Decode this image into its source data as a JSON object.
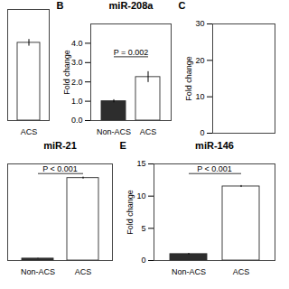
{
  "chart_data": [
    {
      "type": "bar",
      "categories": [
        "ACS"
      ],
      "values": [
        3.5
      ],
      "errors": [
        0.15
      ],
      "colors": [
        "#ffffff"
      ],
      "ylim": [
        0,
        5
      ],
      "tick_labels": "x"
    },
    {
      "type": "bar",
      "panel_label": "B",
      "title": "miR-208a",
      "ylabel": "Fold change",
      "categories": [
        "Non-ACS",
        "ACS"
      ],
      "values": [
        1.0,
        2.25
      ],
      "errors": [
        0.08,
        0.28
      ],
      "colors": [
        "#2d2d2d",
        "#ffffff"
      ],
      "ylim": [
        0,
        5
      ],
      "yticks": [
        0,
        1,
        2,
        3,
        4
      ],
      "annotations": [
        {
          "text": "P = 0.002",
          "y": 3.3
        }
      ]
    },
    {
      "type": "bar",
      "panel_label": "C",
      "ylabel": "Fold change",
      "categories": [],
      "values": [],
      "ylim": [
        0,
        30
      ],
      "yticks": [
        0,
        10,
        20,
        30
      ],
      "tick_labels": "y"
    },
    {
      "type": "bar",
      "title": "miR-21",
      "categories": [
        "Non-ACS",
        "ACS"
      ],
      "values": [
        0.3,
        12.8
      ],
      "errors": [
        0.05,
        0.15
      ],
      "colors": [
        "#2d2d2d",
        "#ffffff"
      ],
      "ylim": [
        0,
        15
      ],
      "tick_labels": "x",
      "annotations": [
        {
          "text": "P < 0.001",
          "y": 13.5
        }
      ]
    },
    {
      "type": "bar",
      "panel_label": "E",
      "title": "miR-146",
      "ylabel": "Fold change",
      "categories": [
        "Non-ACS",
        "ACS"
      ],
      "values": [
        1.0,
        11.5
      ],
      "errors": [
        0.12,
        0.15
      ],
      "colors": [
        "#2d2d2d",
        "#ffffff"
      ],
      "ylim": [
        0,
        15
      ],
      "yticks": [
        0,
        5,
        10,
        15
      ],
      "annotations": [
        {
          "text": "P < 0.001",
          "y": 13.5
        }
      ]
    }
  ]
}
